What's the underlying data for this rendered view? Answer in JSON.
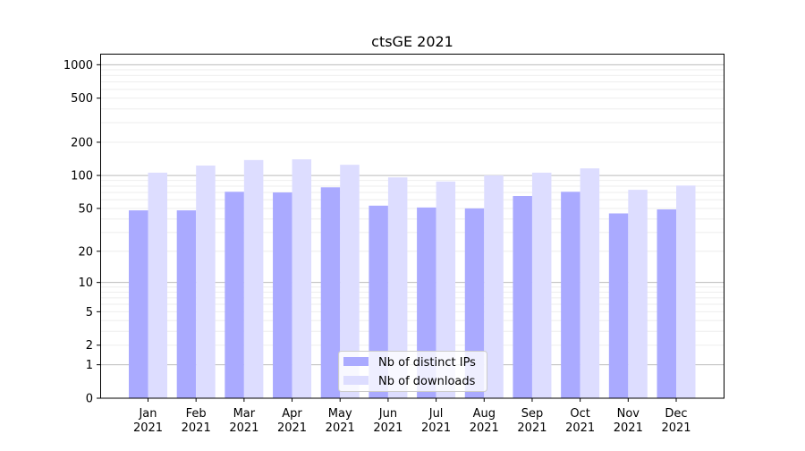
{
  "chart_data": {
    "type": "bar",
    "title": "ctsGE 2021",
    "xlabel": "",
    "ylabel": "",
    "yscale": "log(x+1)",
    "ylim": [
      0,
      1250
    ],
    "grid": true,
    "legend_position": "bottom-center",
    "categories": [
      "Jan\n2021",
      "Feb\n2021",
      "Mar\n2021",
      "Apr\n2021",
      "May\n2021",
      "Jun\n2021",
      "Jul\n2021",
      "Aug\n2021",
      "Sep\n2021",
      "Oct\n2021",
      "Nov\n2021",
      "Dec\n2021"
    ],
    "yticks": [
      0,
      1,
      2,
      5,
      10,
      20,
      50,
      100,
      200,
      500,
      1000
    ],
    "series": [
      {
        "name": "Nb of distinct IPs",
        "color": "#aaaaff",
        "values": [
          48,
          48,
          71,
          70,
          78,
          53,
          51,
          50,
          65,
          71,
          45,
          49
        ]
      },
      {
        "name": "Nb of downloads",
        "color": "#ddddff",
        "values": [
          106,
          123,
          138,
          140,
          125,
          96,
          88,
          100,
          106,
          116,
          74,
          81
        ]
      }
    ]
  }
}
